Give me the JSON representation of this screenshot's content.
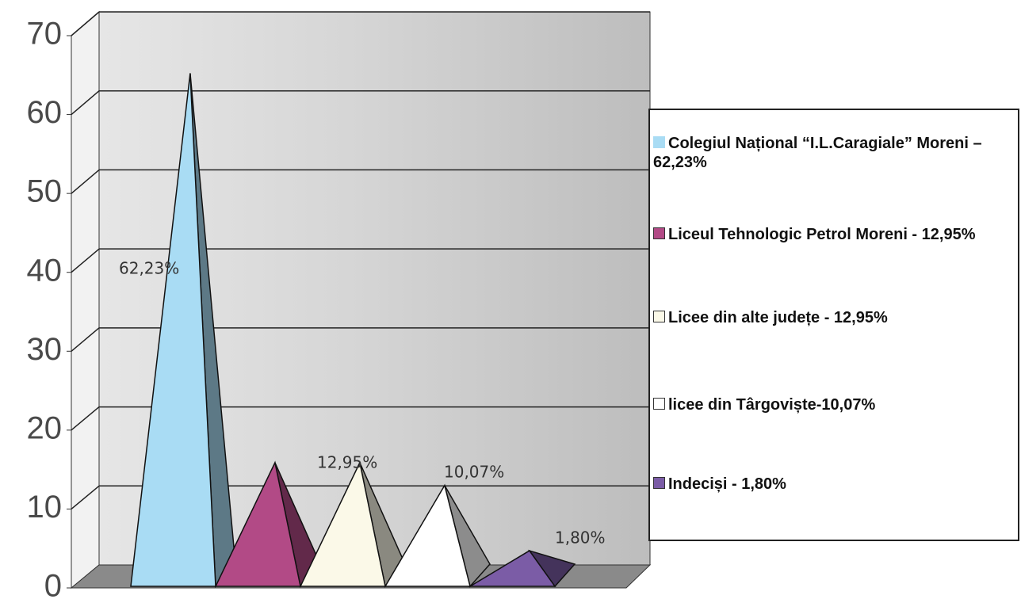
{
  "chart_data": {
    "type": "bar",
    "categories": [
      "Colegiul Național “I.L.Caragiale” Moreni – 62,23%",
      "Liceul Tehnologic  Petrol Moreni - 12,95%",
      "Licee din alte județe - 12,95%",
      "licee din Târgoviște-10,07%",
      "Indeciși - 1,80%"
    ],
    "values": [
      62.23,
      12.95,
      12.95,
      10.07,
      1.8
    ],
    "value_labels": [
      "62,23%",
      "12,95%",
      null,
      "10,07%",
      "1,80%"
    ],
    "colors": [
      "#a9dcf4",
      "#b24a86",
      "#fbf9e8",
      "#ffffff",
      "#7b5ca6"
    ],
    "ylim": [
      0,
      70
    ],
    "yticks": [
      0,
      10,
      20,
      30,
      40,
      50,
      60,
      70
    ],
    "grid": true
  }
}
